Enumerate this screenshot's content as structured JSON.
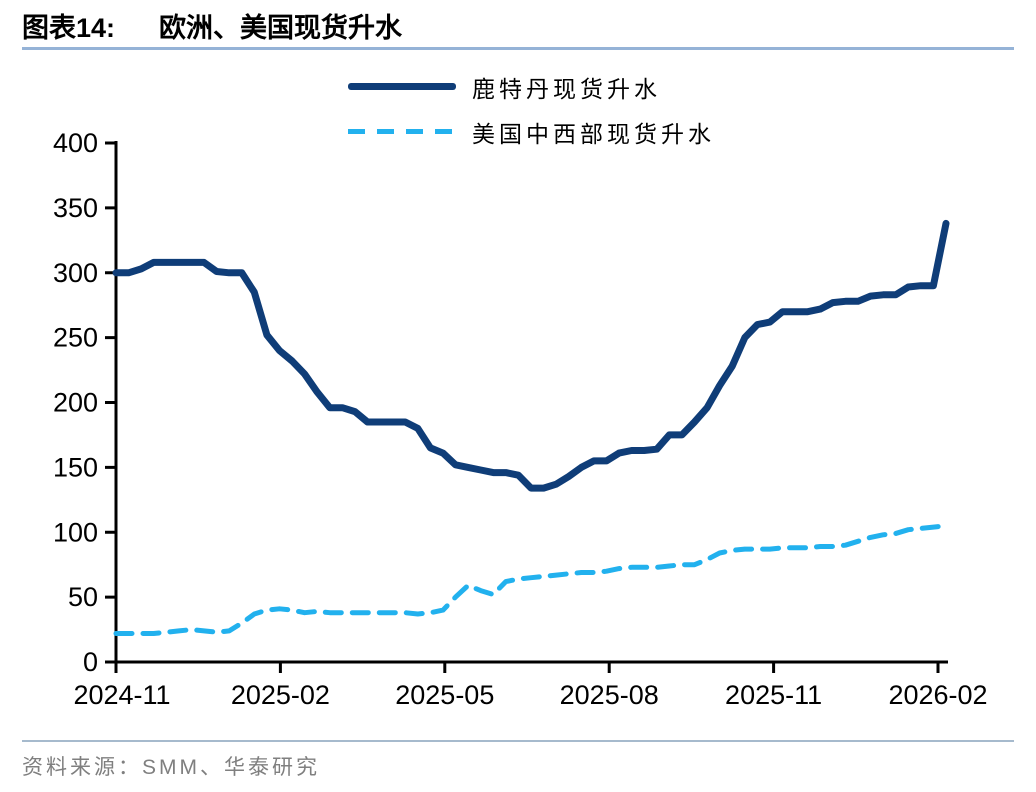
{
  "page": {
    "title_prefix": "图表14:",
    "title_main": "欧洲、美国现货升水",
    "source": "资料来源：SMM、华泰研究"
  },
  "colors": {
    "rotterdam_line": "#0F3D78",
    "us_midwest_line": "#22B1EE",
    "title_rule": "#95B3D7",
    "footer_rule": "#A6BACD",
    "axis": "#000000",
    "tick_text": "#000000",
    "source_text": "#7F7F7F"
  },
  "chart_data": {
    "type": "line",
    "title": "欧洲、美国现货升水",
    "grid": false,
    "legend_position": "top-center",
    "x_tick_labels": [
      "2024-11",
      "2025-02",
      "2025-05",
      "2025-08",
      "2025-11",
      "2026-02"
    ],
    "y_axis": {
      "min": 0,
      "max": 400,
      "step": 50,
      "tick_labels": [
        "0",
        "50",
        "100",
        "150",
        "200",
        "250",
        "300",
        "350",
        "400"
      ]
    },
    "x_unit": "weekly observations from 2024-11 to 2026-02",
    "series": [
      {
        "name": "鹿特丹现货升水",
        "line_style": "solid",
        "color": "#0F3D78",
        "values": [
          300,
          300,
          303,
          308,
          308,
          308,
          308,
          308,
          301,
          300,
          300,
          285,
          252,
          240,
          232,
          222,
          208,
          196,
          196,
          193,
          185,
          185,
          185,
          185,
          180,
          165,
          161,
          152,
          150,
          148,
          146,
          146,
          144,
          134,
          134,
          137,
          143,
          150,
          155,
          155,
          161,
          163,
          163,
          164,
          175,
          175,
          185,
          196,
          213,
          228,
          250,
          260,
          262,
          270,
          270,
          270,
          272,
          277,
          278,
          278,
          282,
          283,
          283,
          289,
          290,
          290,
          338
        ]
      },
      {
        "name": "美国中西部现货升水",
        "line_style": "dashed",
        "color": "#22B1EE",
        "values": [
          22,
          22,
          22,
          22,
          23,
          24,
          25,
          24,
          23,
          24,
          30,
          37,
          40,
          41,
          40,
          38,
          39,
          38,
          38,
          38,
          38,
          38,
          38,
          38,
          37,
          38,
          40,
          50,
          59,
          55,
          52,
          62,
          64,
          65,
          66,
          67,
          68,
          69,
          69,
          70,
          72,
          73,
          73,
          73,
          74,
          75,
          75,
          79,
          84,
          86,
          87,
          87,
          87,
          88,
          88,
          88,
          89,
          89,
          90,
          93,
          96,
          98,
          99,
          102,
          103,
          104,
          105
        ]
      }
    ]
  }
}
